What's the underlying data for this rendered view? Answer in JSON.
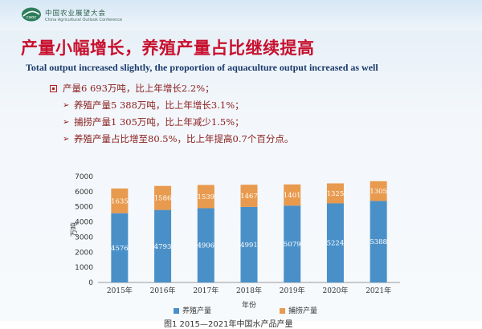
{
  "header": {
    "org_cn": "中国农业展望大会",
    "org_en": "China Agricultural Outlook Conference",
    "logo_text": "caoc"
  },
  "title_cn": "产量小幅增长，养殖产量占比继续提高",
  "title_en": "Total output increased slightly, the proportion of aquaculture output increased as well",
  "bullets": {
    "main": "产量6 693万吨，比上年增长2.2%；",
    "subs": [
      "养殖产量5 388万吨，比上年增长3.1%；",
      "捕捞产量1 305万吨，比上年减少1.5%；",
      "养殖产量占比增至80.5%，比上年提高0.7个百分点。"
    ]
  },
  "colors": {
    "aquaculture": "#4a90c8",
    "fishing": "#e89a4e",
    "title_red": "#c8102e"
  },
  "chart_data": {
    "type": "bar",
    "stacked": true,
    "categories": [
      "2015年",
      "2016年",
      "2017年",
      "2018年",
      "2019年",
      "2020年",
      "2021年"
    ],
    "series": [
      {
        "name": "养殖产量",
        "values": [
          4576,
          4793,
          4906,
          4991,
          5079,
          5224,
          5388
        ]
      },
      {
        "name": "捕捞产量",
        "values": [
          1635,
          1586,
          1539,
          1467,
          1401,
          1325,
          1305
        ]
      }
    ],
    "xlabel": "年份",
    "ylabel": "万吨",
    "ylim": [
      0,
      7000
    ],
    "yticks": [
      0,
      1000,
      2000,
      3000,
      4000,
      5000,
      6000,
      7000
    ],
    "legend": "bottom",
    "grid": false
  },
  "caption": "图1 2015—2021年中国水产品产量"
}
